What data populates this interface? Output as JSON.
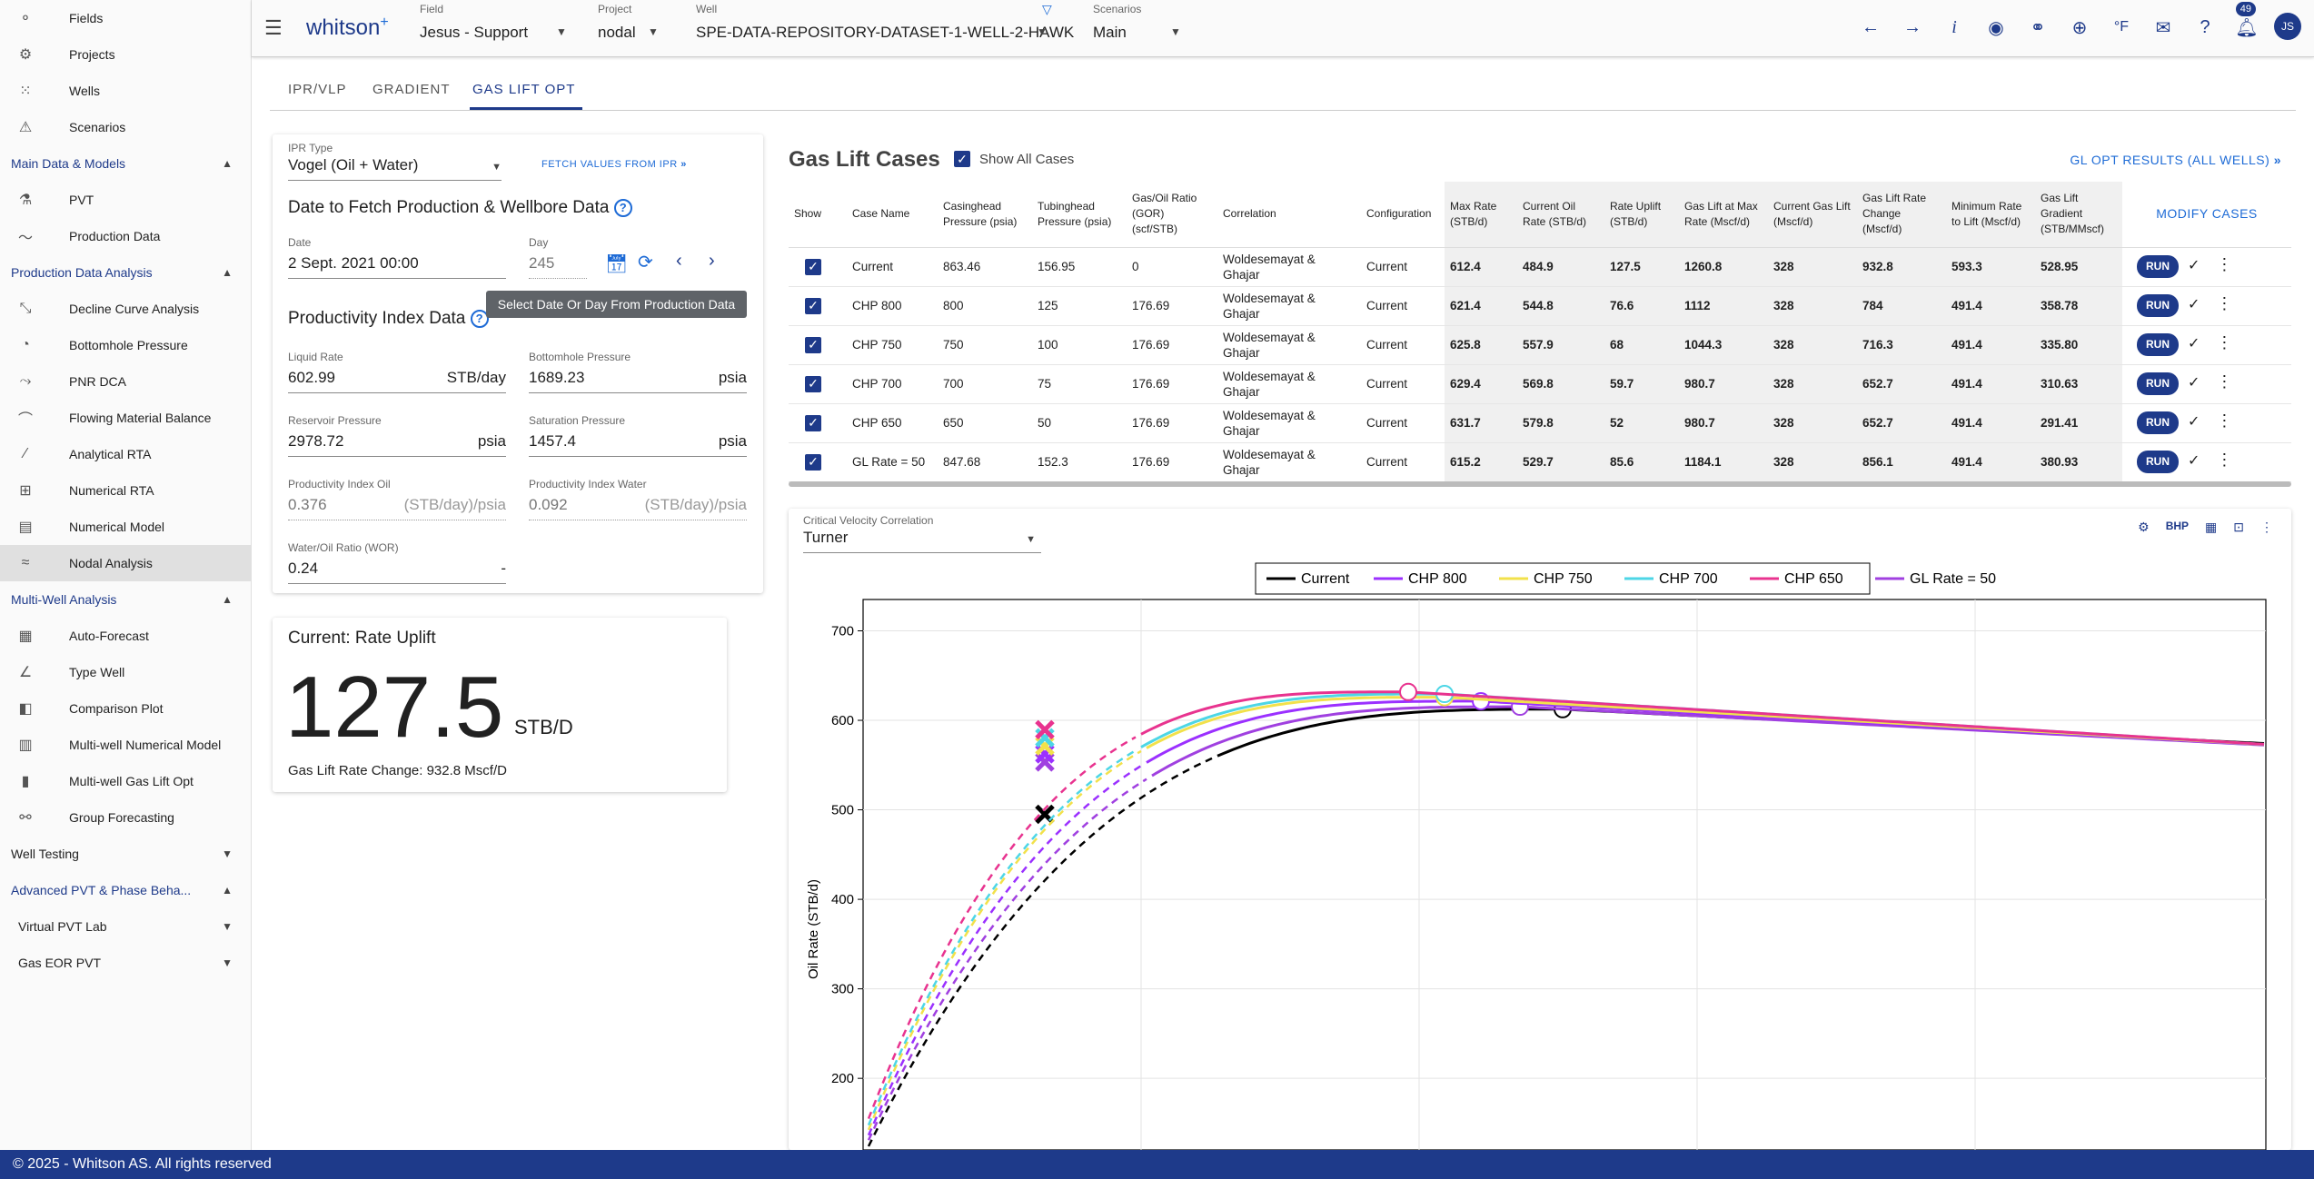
{
  "sidebar": {
    "top": [
      {
        "label": "Fields",
        "icon": "fields-icon"
      },
      {
        "label": "Projects",
        "icon": "projects-icon"
      },
      {
        "label": "Wells",
        "icon": "wells-icon"
      },
      {
        "label": "Scenarios",
        "icon": "scenarios-icon"
      }
    ],
    "sections": [
      {
        "title": "Main Data & Models",
        "items": [
          {
            "label": "PVT",
            "icon": "flask-icon"
          },
          {
            "label": "Production Data",
            "icon": "production-icon"
          }
        ]
      },
      {
        "title": "Production Data Analysis",
        "items": [
          {
            "label": "Decline Curve Analysis",
            "icon": "decline-icon"
          },
          {
            "label": "Bottomhole Pressure",
            "icon": "pressure-icon"
          },
          {
            "label": "PNR DCA",
            "icon": "pnr-icon"
          },
          {
            "label": "Flowing Material Balance",
            "icon": "fmb-icon"
          },
          {
            "label": "Analytical RTA",
            "icon": "rta-icon"
          },
          {
            "label": "Numerical RTA",
            "icon": "numrta-icon"
          },
          {
            "label": "Numerical Model",
            "icon": "numeric-icon"
          },
          {
            "label": "Nodal Analysis",
            "icon": "nodal-icon",
            "active": true
          }
        ]
      },
      {
        "title": "Multi-Well Analysis",
        "items": [
          {
            "label": "Auto-Forecast",
            "icon": "grid-icon"
          },
          {
            "label": "Type Well",
            "icon": "typewell-icon"
          },
          {
            "label": "Comparison Plot",
            "icon": "compare-icon"
          },
          {
            "label": "Multi-well Numerical Model",
            "icon": "mwnum-icon"
          },
          {
            "label": "Multi-well Gas Lift Opt",
            "icon": "mwgl-icon"
          },
          {
            "label": "Group Forecasting",
            "icon": "group-icon"
          }
        ]
      }
    ],
    "collapsed": [
      {
        "label": "Well Testing",
        "dark": true
      },
      {
        "label": "Advanced PVT & Phase Beha...",
        "dark": false
      }
    ],
    "sub": [
      {
        "label": "Virtual PVT Lab"
      },
      {
        "label": "Gas EOR PVT"
      }
    ]
  },
  "header": {
    "logo": "whitson",
    "logo_plus": "+",
    "field_label": "Field",
    "field": "Jesus - Support",
    "project_label": "Project",
    "project": "nodal",
    "well_label": "Well",
    "well": "SPE-DATA-REPOSITORY-DATASET-1-WELL-2-HAWK",
    "scen_label": "Scenarios",
    "scenario": "Main",
    "badge": "49",
    "avatar": "JS"
  },
  "tabs": [
    "IPR/VLP",
    "GRADIENT",
    "GAS LIFT OPT"
  ],
  "ipr": {
    "type_label": "IPR Type",
    "type": "Vogel (Oil + Water)",
    "fetch": "FETCH VALUES FROM IPR",
    "date_title": "Date to Fetch Production & Wellbore Data",
    "date_label": "Date",
    "date": "2 Sept. 2021 00:00",
    "day_label": "Day",
    "day": "245",
    "tooltip": "Select Date Or Day From Production Data",
    "pi_title": "Productivity Index Data",
    "fields": [
      {
        "label": "Liquid Rate",
        "value": "602.99",
        "unit": "STB/day"
      },
      {
        "label": "Bottomhole Pressure",
        "value": "1689.23",
        "unit": "psia"
      },
      {
        "label": "Reservoir Pressure",
        "value": "2978.72",
        "unit": "psia"
      },
      {
        "label": "Saturation Pressure",
        "value": "1457.4",
        "unit": "psia"
      },
      {
        "label": "Productivity Index Oil",
        "value": "0.376",
        "unit": "(STB/day)/psia"
      },
      {
        "label": "Productivity Index Water",
        "value": "0.092",
        "unit": "(STB/day)/psia"
      },
      {
        "label": "Water/Oil Ratio (WOR)",
        "value": "0.24",
        "unit": "-"
      }
    ]
  },
  "uplift": {
    "title": "Current: Rate Uplift",
    "value": "127.5",
    "unit": "STB/D",
    "change": "Gas Lift Rate Change: 932.8 Mscf/D"
  },
  "cases": {
    "title": "Gas Lift Cases",
    "show_all": "Show All Cases",
    "link": "GL OPT RESULTS (ALL WELLS)",
    "modify": "MODIFY CASES",
    "run": "RUN",
    "headers": [
      "Show",
      "Case Name",
      "Casinghead Pressure (psia)",
      "Tubinghead Pressure (psia)",
      "Gas/Oil Ratio (GOR) (scf/STB)",
      "Correlation",
      "Configuration",
      "Max Rate (STB/d)",
      "Current Oil Rate (STB/d)",
      "Rate Uplift (STB/d)",
      "Gas Lift at Max Rate (Mscf/d)",
      "Current Gas Lift (Mscf/d)",
      "Gas Lift Rate Change (Mscf/d)",
      "Minimum Rate to Lift (Mscf/d)",
      "Gas Lift Gradient (STB/MMscf)"
    ],
    "rows": [
      [
        "Current",
        "863.46",
        "156.95",
        "0",
        "Woldesemayat & Ghajar",
        "Current",
        "612.4",
        "484.9",
        "127.5",
        "1260.8",
        "328",
        "932.8",
        "593.3",
        "528.95"
      ],
      [
        "CHP 800",
        "800",
        "125",
        "176.69",
        "Woldesemayat & Ghajar",
        "Current",
        "621.4",
        "544.8",
        "76.6",
        "1112",
        "328",
        "784",
        "491.4",
        "358.78"
      ],
      [
        "CHP 750",
        "750",
        "100",
        "176.69",
        "Woldesemayat & Ghajar",
        "Current",
        "625.8",
        "557.9",
        "68",
        "1044.3",
        "328",
        "716.3",
        "491.4",
        "335.80"
      ],
      [
        "CHP 700",
        "700",
        "75",
        "176.69",
        "Woldesemayat & Ghajar",
        "Current",
        "629.4",
        "569.8",
        "59.7",
        "980.7",
        "328",
        "652.7",
        "491.4",
        "310.63"
      ],
      [
        "CHP 650",
        "650",
        "50",
        "176.69",
        "Woldesemayat & Ghajar",
        "Current",
        "631.7",
        "579.8",
        "52",
        "980.7",
        "328",
        "652.7",
        "491.4",
        "291.41"
      ],
      [
        "GL Rate = 50",
        "847.68",
        "152.3",
        "176.69",
        "Woldesemayat & Ghajar",
        "Current",
        "615.2",
        "529.7",
        "85.6",
        "1184.1",
        "328",
        "856.1",
        "491.4",
        "380.93"
      ]
    ]
  },
  "chart": {
    "cvc_label": "Critical Velocity Correlation",
    "cvc": "Turner",
    "bhp": "BHP"
  },
  "chart_data": {
    "type": "line",
    "ylabel": "Oil Rate (STB/d)",
    "ylim": [
      120,
      735
    ],
    "yticks": [
      200,
      300,
      400,
      500,
      600,
      700
    ],
    "series": [
      {
        "name": "Current",
        "color": "#000000",
        "peak": 612.4
      },
      {
        "name": "CHP 800",
        "color": "#9b30ff",
        "peak": 621.4
      },
      {
        "name": "CHP 750",
        "color": "#f2e14b",
        "peak": 625.8
      },
      {
        "name": "CHP 700",
        "color": "#4dd6e6",
        "peak": 629.4
      },
      {
        "name": "CHP 650",
        "color": "#e8338f",
        "peak": 631.7
      },
      {
        "name": "GL Rate = 50",
        "color": "#a040e0",
        "peak": 615.2
      }
    ]
  },
  "footer": "© 2025 - Whitson AS. All rights reserved"
}
